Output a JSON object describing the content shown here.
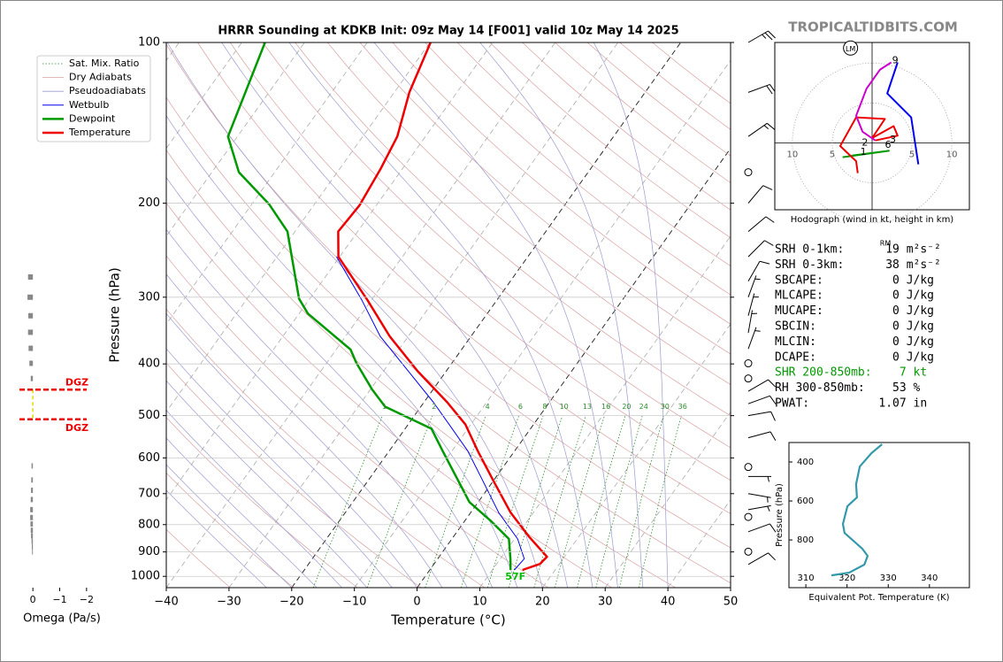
{
  "chart_data": [
    {
      "type": "skewt",
      "title": "HRRR Sounding at KDKB Init: 09z May 14 [F001] valid 10z May 14 2025",
      "xlabel": "Temperature (°C)",
      "ylabel": "Pressure (hPa)",
      "xlim": [
        -40,
        50
      ],
      "ylim": [
        1050,
        100
      ],
      "ylog": true,
      "xticks": [
        {
          "value": -40,
          "label": "−40"
        },
        {
          "value": -30,
          "label": "−30"
        },
        {
          "value": -20,
          "label": "−20"
        },
        {
          "value": -10,
          "label": "−10"
        },
        0,
        10,
        20,
        30,
        40,
        50
      ],
      "yticks": [
        100,
        200,
        300,
        400,
        500,
        600,
        700,
        800,
        900,
        1000
      ],
      "grid": true,
      "highlight_isotherms": [
        0,
        -20
      ],
      "mixing_ratios": [
        1,
        2,
        4,
        6,
        8,
        10,
        13,
        16,
        20,
        24,
        30,
        36
      ],
      "reference_lines": [
        {
          "name": "Sat. Mix. Ratio",
          "color": "#2e8b2e",
          "style": "dotted"
        },
        {
          "name": "Dry Adiabats",
          "color": "#d9a0a0",
          "style": "solid"
        },
        {
          "name": "Pseudoadiabats",
          "color": "#9a9ad0",
          "style": "solid"
        }
      ],
      "series": [
        {
          "name": "Wetbulb",
          "color": "#0000ee",
          "width": 1,
          "pressure": [
            973,
            927,
            851,
            760,
            665,
            582,
            519,
            472,
            413,
            355,
            304,
            252
          ],
          "values": [
            13.5,
            13.8,
            10.5,
            4.5,
            -1.5,
            -7.5,
            -13.5,
            -18.5,
            -26,
            -34.5,
            -41.5,
            -50.5
          ]
        },
        {
          "name": "Dewpoint",
          "color": "#009900",
          "width": 2.5,
          "pressure": [
            973,
            927,
            851,
            789,
            726,
            665,
            582,
            529,
            481,
            446,
            398,
            376,
            322,
            302,
            226,
            201,
            175,
            150,
            100
          ],
          "values": [
            12.9,
            11.6,
            9.1,
            4.3,
            -1.4,
            -5.4,
            -11.5,
            -15.8,
            -25.7,
            -29.8,
            -35.3,
            -37.7,
            -48.6,
            -51.7,
            -61.2,
            -67.2,
            -75.7,
            -81.5,
            -86.3
          ]
        },
        {
          "name": "Temperature",
          "color": "#ee0000",
          "width": 2.5,
          "pressure": [
            973,
            948,
            919,
            845,
            760,
            665,
            582,
            519,
            472,
            413,
            355,
            304,
            252,
            226,
            202,
            172,
            150,
            124,
            100
          ],
          "values": [
            14.8,
            16.9,
            17.2,
            12.2,
            6.4,
            0.2,
            -5.9,
            -10.9,
            -16.3,
            -24.5,
            -33,
            -40.6,
            -50.2,
            -53.1,
            -52.7,
            -53.5,
            -54.5,
            -57.6,
            -59.9
          ]
        }
      ],
      "surface_label": "57F",
      "surface_label_color": "#00bb00",
      "winds": {
        "pressure": [
          100,
          124,
          150,
          175,
          200,
          226,
          252,
          280,
          300,
          325,
          350,
          375,
          399,
          426,
          450,
          475,
          500,
          550,
          624,
          650,
          700,
          750,
          774,
          825,
          899,
          950
        ],
        "speed": [
          25,
          20,
          15,
          0,
          10,
          10,
          10,
          10,
          5,
          5,
          5,
          5,
          0,
          0,
          10,
          10,
          10,
          10,
          0,
          5,
          5,
          5,
          0,
          10,
          0,
          10
        ],
        "direction": [
          60,
          70,
          55,
          0,
          40,
          50,
          45,
          30,
          20,
          15,
          10,
          20,
          0,
          0,
          60,
          70,
          80,
          75,
          0,
          90,
          100,
          80,
          0,
          70,
          0,
          60
        ]
      }
    },
    {
      "type": "omega",
      "xlabel": "Omega (Pa/s)",
      "xlim": [
        0.5,
        -2.4
      ],
      "ylim": [
        1050,
        100
      ],
      "ylog": true,
      "xticks": [
        0,
        {
          "value": -1,
          "label": "−1"
        },
        {
          "value": -2,
          "label": "−2"
        }
      ],
      "pressure": [
        275,
        300,
        325,
        349,
        374,
        399,
        426,
        621,
        660,
        690,
        718,
        750,
        776,
        798,
        820,
        840,
        860,
        880,
        900
      ],
      "values": [
        0.18,
        0.2,
        0.17,
        0.18,
        0.16,
        0.13,
        0.08,
        0.05,
        0.06,
        0.07,
        0.08,
        0.1,
        0.1,
        0.09,
        0.08,
        0.07,
        0.05,
        0.04,
        0.03
      ],
      "color": "#888888",
      "dgz_label": "DGZ",
      "dgz_pressure": [
        447,
        508
      ],
      "dgz_color": "#ee0000"
    },
    {
      "type": "hodograph",
      "caption": "Hodograph (wind in kt, height in km)",
      "xlim": [
        -12.2,
        12.2
      ],
      "ylim": [
        -8.4,
        12.6
      ],
      "xticks": [
        {
          "value": -10,
          "label": "10"
        },
        {
          "value": -5,
          "label": "5"
        },
        {
          "value": 5,
          "label": "5"
        },
        {
          "value": 10,
          "label": "10"
        }
      ],
      "series": [
        {
          "color": "#009900",
          "u": [
            -3.7,
            2.1,
            -2.5
          ],
          "v": [
            -1.8,
            -1.0,
            -1.6
          ]
        },
        {
          "color": "#ee0000",
          "u": [
            -1.8,
            -2,
            -4,
            -2,
            1.6,
            0,
            2.7,
            3.2,
            0.4
          ],
          "v": [
            -3.8,
            -2.3,
            -0.4,
            3.2,
            3.0,
            0.6,
            2.1,
            0.9,
            0.3
          ]
        },
        {
          "color": "#cc00cc",
          "u": [
            0.4,
            -1.2,
            -2,
            -0.7,
            1,
            2.4
          ],
          "v": [
            0.3,
            1.4,
            3.4,
            6.8,
            9.2,
            10.1
          ]
        },
        {
          "color": "#0000ee",
          "u": [
            3.2,
            1.9,
            4.9,
            5.8
          ],
          "v": [
            10.1,
            6.2,
            3.2,
            -2.7
          ]
        }
      ],
      "height_labels": [
        {
          "label": "1",
          "u": -1.1,
          "v": -1.2
        },
        {
          "label": "2",
          "u": -0.9,
          "v": 0
        },
        {
          "label": "3",
          "u": 2.6,
          "v": 0.4
        },
        {
          "label": "6",
          "u": 2,
          "v": -0.3
        },
        {
          "label": "9",
          "u": 2.9,
          "v": 10.3
        }
      ],
      "storm_motion": {
        "label": "LM",
        "u": -2.7,
        "v": 11.9
      }
    },
    {
      "type": "line",
      "xlabel": "Equivalent Pot. Temperature (K)",
      "ylabel": "Pressure (hPa)",
      "xlim": [
        305.9,
        349.7
      ],
      "ylim": [
        1045,
        300
      ],
      "xticks": [
        310,
        320,
        330,
        340
      ],
      "yticks": [
        400,
        600,
        800
      ],
      "color": "#3399aa",
      "pressure": [
        309,
        355,
        423,
        514,
        582,
        627,
        718,
        764,
        845,
        882,
        927,
        968,
        982
      ],
      "values": [
        328.5,
        325.9,
        323.1,
        322.2,
        322.4,
        320.1,
        319,
        319.4,
        323.7,
        325,
        324.2,
        320.5,
        316.2
      ]
    }
  ],
  "watermark": "TROPICALTIDBITS.COM",
  "stats": {
    "rm_label": "RM",
    "rows": [
      {
        "text": "SRH 0-1km:      19 m²s⁻²",
        "color": "#000000"
      },
      {
        "text": "SRH 0-3km:      38 m²s⁻²",
        "color": "#000000"
      },
      {
        "text": "SBCAPE:          0 J/kg",
        "color": "#000000"
      },
      {
        "text": "MLCAPE:          0 J/kg",
        "color": "#000000"
      },
      {
        "text": "MUCAPE:          0 J/kg",
        "color": "#000000"
      },
      {
        "text": "SBCIN:           0 J/kg",
        "color": "#000000"
      },
      {
        "text": "MLCIN:           0 J/kg",
        "color": "#000000"
      },
      {
        "text": "DCAPE:           0 J/kg",
        "color": "#000000"
      },
      {
        "text": "SHR 200-850mb:    7 kt",
        "color": "#009900"
      },
      {
        "text": "RH 300-850mb:    53 %",
        "color": "#000000"
      },
      {
        "text": "PWAT:          1.07 in",
        "color": "#000000"
      }
    ]
  }
}
